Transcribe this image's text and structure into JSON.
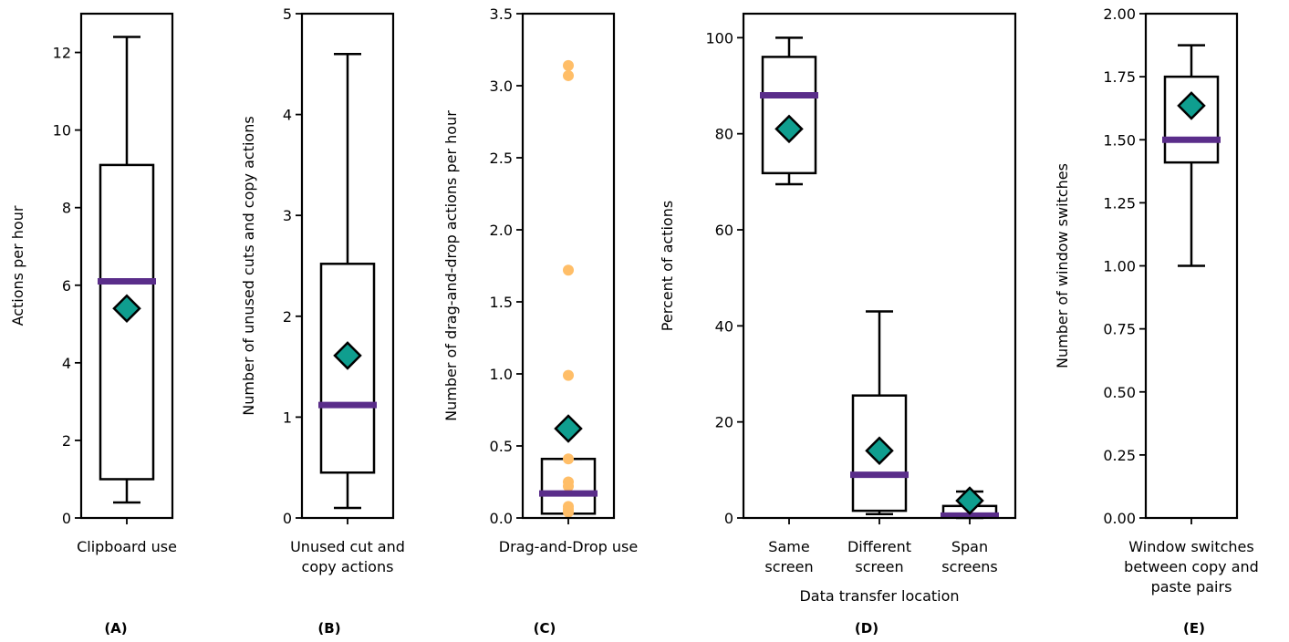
{
  "colors": {
    "median": "#5a2d8a",
    "mean_fill": "#0f9e8f",
    "flier": "#ffbe68"
  },
  "chart_data": [
    {
      "type": "box",
      "panel_label": "(A)",
      "ylabel": "Actions per hour",
      "ylim": [
        0,
        13
      ],
      "yticks": [
        "0",
        "2",
        "4",
        "6",
        "8",
        "10",
        "12"
      ],
      "yticks_values": [
        0,
        2,
        4,
        6,
        8,
        10,
        12
      ],
      "categories": [
        [
          "Clipboard use"
        ]
      ],
      "boxes": [
        {
          "whisker_low": 0.4,
          "q1": 1.0,
          "median": 6.1,
          "q3": 9.1,
          "whisker_high": 12.4,
          "mean": 5.4,
          "fliers": []
        }
      ]
    },
    {
      "type": "box",
      "panel_label": "(B)",
      "ylabel": "Number of unused cuts and copy actions",
      "ylim": [
        0,
        5
      ],
      "yticks": [
        "0",
        "1",
        "2",
        "3",
        "4",
        "5"
      ],
      "yticks_values": [
        0,
        1,
        2,
        3,
        4,
        5
      ],
      "categories": [
        [
          "Unused cut and",
          "copy actions"
        ]
      ],
      "boxes": [
        {
          "whisker_low": 0.1,
          "q1": 0.45,
          "median": 1.12,
          "q3": 2.52,
          "whisker_high": 4.6,
          "mean": 1.61,
          "fliers": []
        }
      ]
    },
    {
      "type": "box",
      "panel_label": "(C)",
      "ylabel": "Number of drag-and-drop actions per hour",
      "ylim": [
        0,
        3.5
      ],
      "yticks": [
        "0.0",
        "0.5",
        "1.0",
        "1.5",
        "2.0",
        "2.5",
        "3.0",
        "3.5"
      ],
      "yticks_values": [
        0,
        0.5,
        1.0,
        1.5,
        2.0,
        2.5,
        3.0,
        3.5
      ],
      "categories": [
        [
          "Drag-and-Drop use"
        ]
      ],
      "boxes": [
        {
          "whisker_low": 0.03,
          "q1": 0.03,
          "median": 0.17,
          "q3": 0.41,
          "whisker_high": 0.41,
          "mean": 0.62,
          "fliers": [
            0.04,
            0.06,
            0.08,
            0.22,
            0.25,
            0.41,
            0.99,
            1.72,
            3.07,
            3.14
          ]
        }
      ]
    },
    {
      "type": "box",
      "panel_label": "(D)",
      "ylabel": "Percent of actions",
      "xlabel": "Data transfer location",
      "ylim": [
        0,
        105
      ],
      "yticks": [
        "0",
        "20",
        "40",
        "60",
        "80",
        "100"
      ],
      "yticks_values": [
        0,
        20,
        40,
        60,
        80,
        100
      ],
      "categories": [
        [
          "Same",
          "screen"
        ],
        [
          "Different",
          "screen"
        ],
        [
          "Span",
          "screens"
        ]
      ],
      "boxes": [
        {
          "whisker_low": 69.5,
          "q1": 71.8,
          "median": 88.0,
          "q3": 96.0,
          "whisker_high": 100,
          "mean": 81.0,
          "fliers": []
        },
        {
          "whisker_low": 0.8,
          "q1": 1.5,
          "median": 9.0,
          "q3": 25.5,
          "whisker_high": 43.0,
          "mean": 14.0,
          "fliers": []
        },
        {
          "whisker_low": 0.0,
          "q1": 0.3,
          "median": 0.5,
          "q3": 2.5,
          "whisker_high": 5.5,
          "mean": 3.6,
          "fliers": []
        }
      ]
    },
    {
      "type": "box",
      "panel_label": "(E)",
      "ylabel": "Number of window switches",
      "ylim": [
        0,
        2.0
      ],
      "yticks": [
        "0.00",
        "0.25",
        "0.50",
        "0.75",
        "1.00",
        "1.25",
        "1.50",
        "1.75",
        "2.00"
      ],
      "yticks_values": [
        0,
        0.25,
        0.5,
        0.75,
        1.0,
        1.25,
        1.5,
        1.75,
        2.0
      ],
      "categories": [
        [
          "Window switches",
          "between copy and",
          "paste pairs"
        ]
      ],
      "boxes": [
        {
          "whisker_low": 1.0,
          "q1": 1.41,
          "median": 1.5,
          "q3": 1.75,
          "whisker_high": 1.875,
          "mean": 1.635,
          "fliers": []
        }
      ]
    }
  ]
}
